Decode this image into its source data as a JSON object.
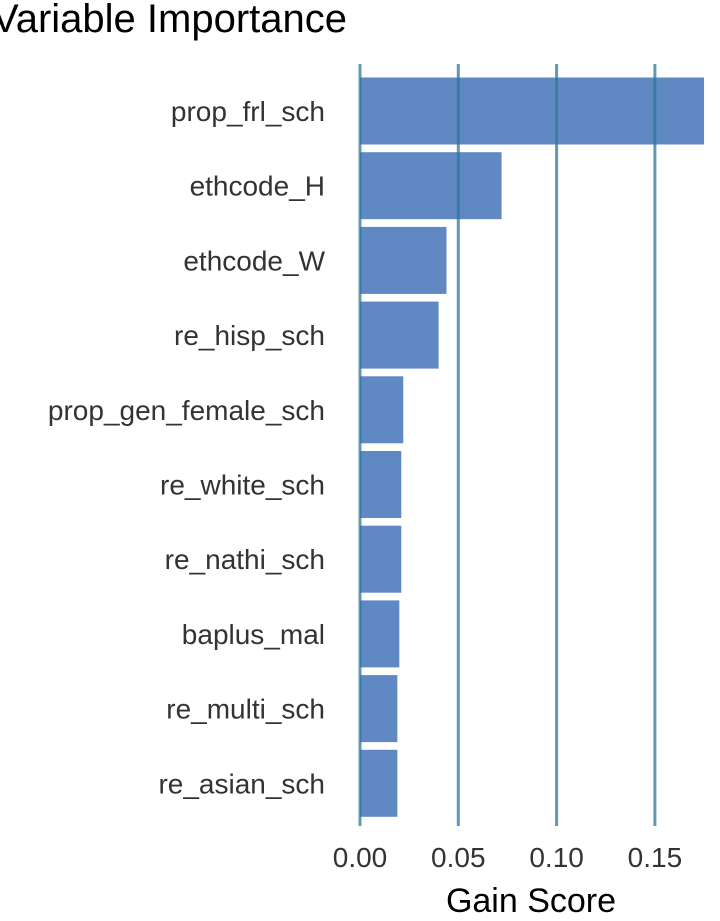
{
  "chart_data": {
    "type": "bar",
    "orientation": "horizontal",
    "title": "Variable Importance",
    "xlabel": "Gain Score",
    "ylabel": "",
    "categories": [
      "prop_frl_sch",
      "ethcode_H",
      "ethcode_W",
      "re_hisp_sch",
      "prop_gen_female_sch",
      "re_white_sch",
      "re_nathi_sch",
      "baplus_mal",
      "re_multi_sch",
      "re_asian_sch"
    ],
    "values": [
      0.175,
      0.072,
      0.044,
      0.04,
      0.022,
      0.021,
      0.021,
      0.02,
      0.019,
      0.019
    ],
    "xlim": [
      0,
      0.175
    ],
    "xticks": [
      0.0,
      0.05,
      0.1,
      0.15
    ],
    "xtick_labels": [
      "0.00",
      "0.05",
      "0.10",
      "0.15"
    ],
    "grid": "vertical lines at x ticks",
    "legend": "none",
    "colors": {
      "bar": "#6089c3",
      "gridline": "#2c7896",
      "text": "#333333"
    }
  }
}
